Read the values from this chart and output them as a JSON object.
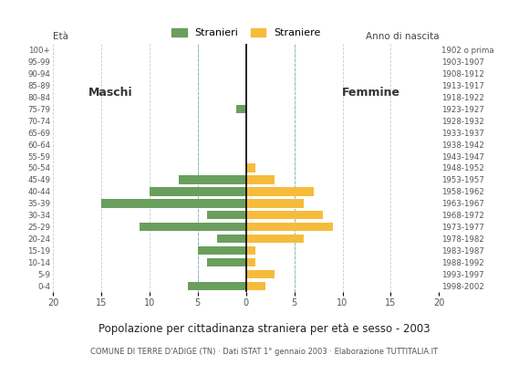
{
  "age_groups": [
    "0-4",
    "5-9",
    "10-14",
    "15-19",
    "20-24",
    "25-29",
    "30-34",
    "35-39",
    "40-44",
    "45-49",
    "50-54",
    "55-59",
    "60-64",
    "65-69",
    "70-74",
    "75-79",
    "80-84",
    "85-89",
    "90-94",
    "95-99",
    "100+"
  ],
  "birth_years": [
    "1998-2002",
    "1993-1997",
    "1988-1992",
    "1983-1987",
    "1978-1982",
    "1973-1977",
    "1968-1972",
    "1963-1967",
    "1958-1962",
    "1953-1957",
    "1948-1952",
    "1943-1947",
    "1938-1942",
    "1933-1937",
    "1928-1932",
    "1923-1927",
    "1918-1922",
    "1913-1917",
    "1908-1912",
    "1903-1907",
    "1902 o prima"
  ],
  "males": [
    6,
    0,
    4,
    5,
    3,
    11,
    4,
    15,
    10,
    7,
    0,
    0,
    0,
    0,
    0,
    1,
    0,
    0,
    0,
    0,
    0
  ],
  "females": [
    2,
    3,
    1,
    1,
    6,
    9,
    8,
    6,
    7,
    3,
    1,
    0,
    0,
    0,
    0,
    0,
    0,
    0,
    0,
    0,
    0
  ],
  "male_color": "#6a9e5e",
  "female_color": "#f5bc3c",
  "title": "Popolazione per cittadinanza straniera per età e sesso - 2003",
  "subtitle": "COMUNE DI TERRE D'ADIGE (TN) · Dati ISTAT 1° gennaio 2003 · Elaborazione TUTTITALIA.IT",
  "legend_male": "Stranieri",
  "legend_female": "Straniere",
  "xlim": 20,
  "label_left": "Maschi",
  "label_right": "Femmine",
  "label_eta": "Età",
  "label_anno": "Anno di nascita",
  "background_color": "#ffffff",
  "grid_color": "#cccccc",
  "dashed_color": "#7fbfbf"
}
